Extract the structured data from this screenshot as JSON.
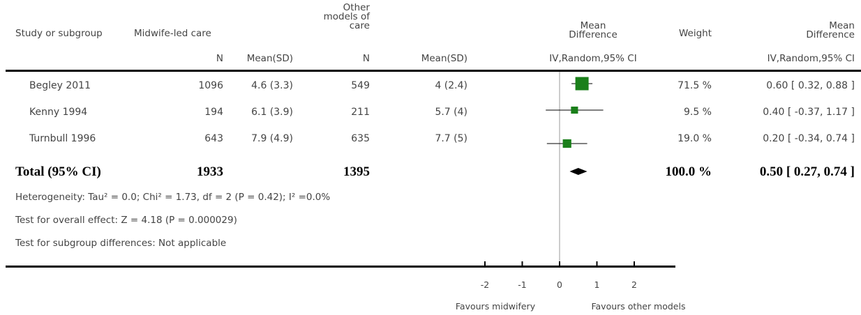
{
  "header": {
    "study_col": "Study or subgroup",
    "group1": "Midwife-led care",
    "group2_line1": "Other",
    "group2_line2": "models of",
    "group2_line3": "care",
    "effect_line1": "Mean",
    "effect_line2": "Difference",
    "weight": "Weight",
    "ci_line1": "Mean",
    "ci_line2": "Difference",
    "sub_n1": "N",
    "sub_mean1": "Mean(SD)",
    "sub_n2": "N",
    "sub_mean2": "Mean(SD)",
    "sub_method": "IV,Random,95% CI",
    "sub_method2": "IV,Random,95% CI"
  },
  "rows": [
    {
      "study": "Begley 2011",
      "n1": "1096",
      "ms1": "4.6 (3.3)",
      "n2": "549",
      "ms2": "4 (2.4)",
      "weight": "71.5 %",
      "ci": "0.60 [ 0.32, 0.88 ]"
    },
    {
      "study": "Kenny 1994",
      "n1": "194",
      "ms1": "6.1 (3.9)",
      "n2": "211",
      "ms2": "5.7 (4)",
      "weight": "9.5 %",
      "ci": "0.40 [ -0.37, 1.17 ]"
    },
    {
      "study": "Turnbull 1996",
      "n1": "643",
      "ms1": "7.9 (4.9)",
      "n2": "635",
      "ms2": "7.7 (5)",
      "weight": "19.0 %",
      "ci": "0.20 [ -0.34, 0.74 ]"
    }
  ],
  "total": {
    "label": "Total (95% CI)",
    "n1": "1933",
    "n2": "1395",
    "weight": "100.0 %",
    "ci": "0.50 [ 0.27, 0.74 ]"
  },
  "notes": {
    "heterogeneity": "Heterogeneity: Tau² = 0.0; Chi² = 1.73, df = 2 (P = 0.42); I² =0.0%",
    "overall": "Test for overall effect: Z = 4.18 (P = 0.000029)",
    "subgroup": "Test for subgroup differences: Not applicable"
  },
  "axis": {
    "favours_left": "Favours midwifery",
    "favours_right": "Favours other models"
  },
  "chart_data": {
    "type": "forest",
    "title": "",
    "xlim": [
      -2,
      2
    ],
    "xticks": [
      "-2",
      "-1",
      "0",
      "1",
      "2"
    ],
    "xtick_values": [
      -2,
      -1,
      0,
      1,
      2
    ],
    "colors": {
      "marker": "#1a7f1a",
      "line": "#000000",
      "diamond": "#000000"
    },
    "studies": [
      {
        "name": "Begley 2011",
        "estimate": 0.6,
        "lower": 0.32,
        "upper": 0.88,
        "weight": 71.5
      },
      {
        "name": "Kenny 1994",
        "estimate": 0.4,
        "lower": -0.37,
        "upper": 1.17,
        "weight": 9.5
      },
      {
        "name": "Turnbull 1996",
        "estimate": 0.2,
        "lower": -0.34,
        "upper": 0.74,
        "weight": 19.0
      }
    ],
    "pooled": {
      "estimate": 0.5,
      "lower": 0.27,
      "upper": 0.74
    }
  }
}
